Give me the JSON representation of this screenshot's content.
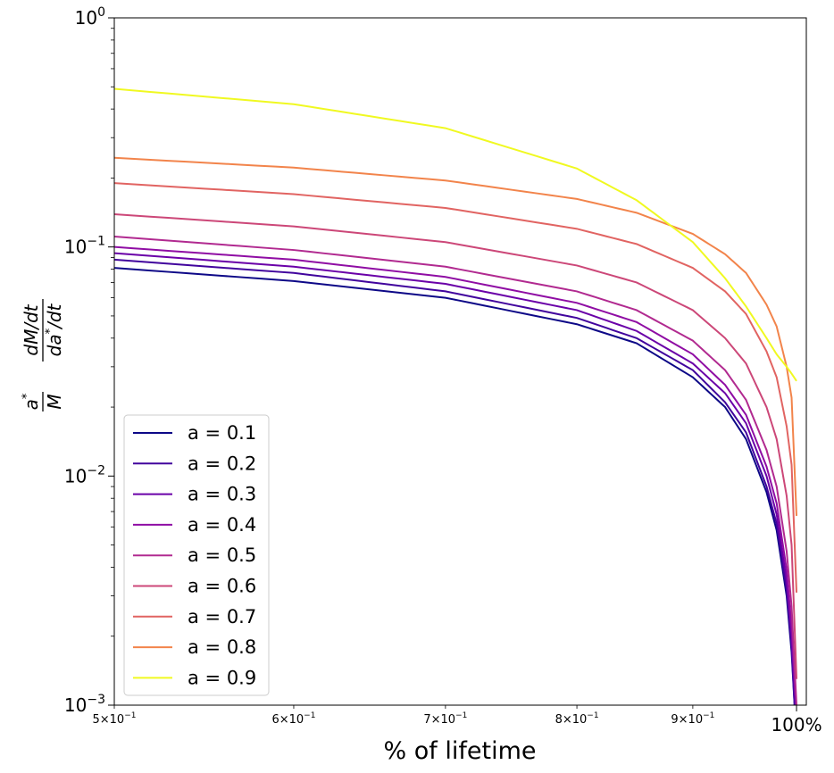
{
  "chart_data": {
    "type": "line",
    "title": "",
    "xlabel": "% of lifetime",
    "ylabel_html": "a* / M · (dM/dt) / (da*/dt)",
    "xscale": "log",
    "yscale": "log",
    "xlim": [
      0.5,
      1.01
    ],
    "ylim": [
      0.001,
      1
    ],
    "grid": false,
    "legend_placement": "lower-left",
    "x_ticks": [
      {
        "value": 0.5,
        "base": "5",
        "exp": "−1"
      },
      {
        "value": 0.6,
        "base": "6",
        "exp": "−1"
      },
      {
        "value": 0.7,
        "base": "7",
        "exp": "−1"
      },
      {
        "value": 0.8,
        "base": "8",
        "exp": "−1"
      },
      {
        "value": 0.9,
        "base": "9",
        "exp": "−1"
      }
    ],
    "x_end_label": {
      "value": 1.0,
      "label": "100%"
    },
    "y_ticks": [
      {
        "value": 1,
        "base": "10",
        "exp": "0"
      },
      {
        "value": 0.1,
        "base": "10",
        "exp": "−1"
      },
      {
        "value": 0.01,
        "base": "10",
        "exp": "−2"
      },
      {
        "value": 0.001,
        "base": "10",
        "exp": "−3"
      }
    ],
    "series": [
      {
        "name": "a = 0.1",
        "color": "#0d0887",
        "x": [
          0.5,
          0.6,
          0.7,
          0.8,
          0.85,
          0.9,
          0.93,
          0.95,
          0.97,
          0.98,
          0.99,
          0.995,
          0.998
        ],
        "y": [
          0.081,
          0.071,
          0.06,
          0.046,
          0.038,
          0.027,
          0.02,
          0.0145,
          0.0085,
          0.0058,
          0.003,
          0.0017,
          0.001
        ]
      },
      {
        "name": "a = 0.2",
        "color": "#41049d",
        "x": [
          0.5,
          0.6,
          0.7,
          0.8,
          0.85,
          0.9,
          0.93,
          0.95,
          0.97,
          0.98,
          0.99,
          0.995,
          0.998
        ],
        "y": [
          0.088,
          0.077,
          0.064,
          0.049,
          0.04,
          0.029,
          0.021,
          0.0155,
          0.009,
          0.0062,
          0.0032,
          0.0018,
          0.001
        ]
      },
      {
        "name": "a = 0.3",
        "color": "#6a00a8",
        "x": [
          0.5,
          0.6,
          0.7,
          0.8,
          0.85,
          0.9,
          0.93,
          0.95,
          0.97,
          0.98,
          0.99,
          0.995,
          0.999
        ],
        "y": [
          0.094,
          0.082,
          0.069,
          0.053,
          0.043,
          0.031,
          0.023,
          0.017,
          0.01,
          0.0068,
          0.0035,
          0.002,
          0.001
        ]
      },
      {
        "name": "a = 0.4",
        "color": "#8f0da4",
        "x": [
          0.5,
          0.6,
          0.7,
          0.8,
          0.85,
          0.9,
          0.93,
          0.95,
          0.97,
          0.98,
          0.99,
          0.995,
          0.999
        ],
        "y": [
          0.1,
          0.088,
          0.074,
          0.057,
          0.047,
          0.034,
          0.025,
          0.0185,
          0.011,
          0.0076,
          0.0039,
          0.0022,
          0.0011
        ]
      },
      {
        "name": "a = 0.5",
        "color": "#b12a90",
        "x": [
          0.5,
          0.6,
          0.7,
          0.8,
          0.85,
          0.9,
          0.93,
          0.95,
          0.97,
          0.98,
          0.99,
          0.995,
          1.0
        ],
        "y": [
          0.111,
          0.097,
          0.082,
          0.064,
          0.053,
          0.039,
          0.029,
          0.0215,
          0.013,
          0.009,
          0.0047,
          0.0027,
          0.001
        ]
      },
      {
        "name": "a = 0.6",
        "color": "#cc4778",
        "x": [
          0.5,
          0.6,
          0.7,
          0.8,
          0.85,
          0.9,
          0.93,
          0.95,
          0.97,
          0.98,
          0.99,
          0.995,
          1.0
        ],
        "y": [
          0.139,
          0.123,
          0.105,
          0.083,
          0.07,
          0.053,
          0.04,
          0.031,
          0.02,
          0.0145,
          0.0082,
          0.005,
          0.0013
        ]
      },
      {
        "name": "a = 0.7",
        "color": "#e16462",
        "x": [
          0.5,
          0.6,
          0.7,
          0.8,
          0.85,
          0.9,
          0.93,
          0.95,
          0.97,
          0.98,
          0.99,
          0.995,
          1.0
        ],
        "y": [
          0.19,
          0.17,
          0.148,
          0.12,
          0.103,
          0.081,
          0.064,
          0.051,
          0.035,
          0.027,
          0.0165,
          0.0112,
          0.0031
        ]
      },
      {
        "name": "a = 0.8",
        "color": "#f2844b",
        "x": [
          0.5,
          0.6,
          0.7,
          0.8,
          0.85,
          0.9,
          0.93,
          0.95,
          0.97,
          0.98,
          0.99,
          0.995,
          1.0
        ],
        "y": [
          0.245,
          0.222,
          0.195,
          0.162,
          0.141,
          0.114,
          0.093,
          0.077,
          0.056,
          0.045,
          0.03,
          0.022,
          0.0067
        ]
      },
      {
        "name": "a = 0.9",
        "color": "#f0f921",
        "x": [
          0.5,
          0.6,
          0.7,
          0.8,
          0.85,
          0.9,
          0.93,
          0.95,
          0.97,
          0.98,
          0.99,
          0.995,
          1.0
        ],
        "y": [
          0.49,
          0.42,
          0.33,
          0.22,
          0.16,
          0.105,
          0.073,
          0.055,
          0.04,
          0.034,
          0.03,
          0.028,
          0.026
        ]
      }
    ],
    "legend_colors_note": ""
  }
}
